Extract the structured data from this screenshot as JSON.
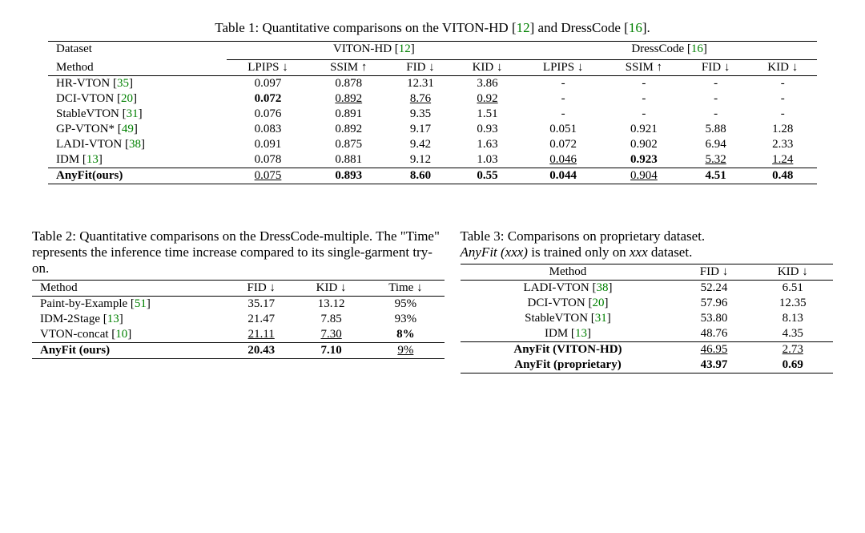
{
  "table1": {
    "caption_prefix": "Table 1: Quantitative comparisons on the VITON-HD [",
    "cite1": "12",
    "caption_mid": "] and DressCode [",
    "cite2": "16",
    "caption_suffix": "].",
    "header_dataset": "Dataset",
    "header_viton_prefix": "VITON-HD [",
    "header_viton_cite": "12",
    "header_viton_suffix": "]",
    "header_dress_prefix": "DressCode [",
    "header_dress_cite": "16",
    "header_dress_suffix": "]",
    "header_method": "Method",
    "col_lpips": "LPIPS ↓",
    "col_ssim": "SSIM ↑",
    "col_fid": "FID ↓",
    "col_kid": "KID ↓",
    "rows": [
      {
        "method": "HR-VTON [",
        "cite": "35",
        "msuf": "]",
        "v": [
          "0.097",
          "0.878",
          "12.31",
          "3.86",
          "-",
          "-",
          "-",
          "-"
        ]
      },
      {
        "method": "DCI-VTON [",
        "cite": "20",
        "msuf": "]",
        "v": [
          "0.072",
          "0.892",
          "8.76",
          "0.92",
          "-",
          "-",
          "-",
          "-"
        ],
        "bold": [
          0
        ],
        "under": [
          1,
          2,
          3
        ]
      },
      {
        "method": "StableVTON [",
        "cite": "31",
        "msuf": "]",
        "v": [
          "0.076",
          "0.891",
          "9.35",
          "1.51",
          "-",
          "-",
          "-",
          "-"
        ]
      },
      {
        "method": "GP-VTON* [",
        "cite": "49",
        "msuf": "]",
        "v": [
          "0.083",
          "0.892",
          "9.17",
          "0.93",
          "0.051",
          "0.921",
          "5.88",
          "1.28"
        ]
      },
      {
        "method": "LADI-VTON [",
        "cite": "38",
        "msuf": "]",
        "v": [
          "0.091",
          "0.875",
          "9.42",
          "1.63",
          "0.072",
          "0.902",
          "6.94",
          "2.33"
        ]
      },
      {
        "method": "IDM [",
        "cite": "13",
        "msuf": "]",
        "v": [
          "0.078",
          "0.881",
          "9.12",
          "1.03",
          "0.046",
          "0.923",
          "5.32",
          "1.24"
        ],
        "under": [
          4,
          6,
          7
        ],
        "bold": [
          5
        ]
      }
    ],
    "ours_label": "AnyFit(ours)",
    "ours": [
      "0.075",
      "0.893",
      "8.60",
      "0.55",
      "0.044",
      "0.904",
      "4.51",
      "0.48"
    ],
    "ours_under": [
      0,
      5
    ],
    "ours_bold": [
      1,
      2,
      3,
      4,
      6,
      7
    ]
  },
  "table2": {
    "caption": "Table 2: Quantitative comparisons on the DressCode-multiple. The \"Time\" represents the inference time increase compared to its single-garment try-on.",
    "header_method": "Method",
    "col_fid": "FID ↓",
    "col_kid": "KID ↓",
    "col_time": "Time ↓",
    "rows": [
      {
        "method": "Paint-by-Example [",
        "cite": "51",
        "msuf": "]",
        "v": [
          "35.17",
          "13.12",
          "95%"
        ]
      },
      {
        "method": "IDM-2Stage [",
        "cite": "13",
        "msuf": "]",
        "v": [
          "21.47",
          "7.85",
          "93%"
        ]
      },
      {
        "method": "VTON-concat [",
        "cite": "10",
        "msuf": "]",
        "v": [
          "21.11",
          "7.30",
          "8%"
        ],
        "under": [
          0,
          1
        ],
        "bold": [
          2
        ]
      }
    ],
    "ours_label": "AnyFit (ours)",
    "ours": [
      "20.43",
      "7.10",
      "9%"
    ],
    "ours_bold": [
      0,
      1
    ],
    "ours_under": [
      2
    ]
  },
  "table3": {
    "caption_a": "Table 3: Comparisons on proprietary dataset.",
    "caption_b_i1": "AnyFit (xxx)",
    "caption_b_mid": " is trained only on ",
    "caption_b_i2": "xxx",
    "caption_b_end": " dataset.",
    "header_method": "Method",
    "col_fid": "FID ↓",
    "col_kid": "KID ↓",
    "rows": [
      {
        "method": "LADI-VTON [",
        "cite": "38",
        "msuf": "]",
        "v": [
          "52.24",
          "6.51"
        ]
      },
      {
        "method": "DCI-VTON [",
        "cite": "20",
        "msuf": "]",
        "v": [
          "57.96",
          "12.35"
        ]
      },
      {
        "method": "StableVTON [",
        "cite": "31",
        "msuf": "]",
        "v": [
          "53.80",
          "8.13"
        ]
      },
      {
        "method": "IDM [",
        "cite": "13",
        "msuf": "]",
        "v": [
          "48.76",
          "4.35"
        ]
      }
    ],
    "ours1_label": "AnyFit (VITON-HD)",
    "ours1": [
      "46.95",
      "2.73"
    ],
    "ours1_under": [
      0,
      1
    ],
    "ours2_label": "AnyFit (proprietary)",
    "ours2": [
      "43.97",
      "0.69"
    ],
    "ours2_bold": [
      0,
      1
    ]
  }
}
